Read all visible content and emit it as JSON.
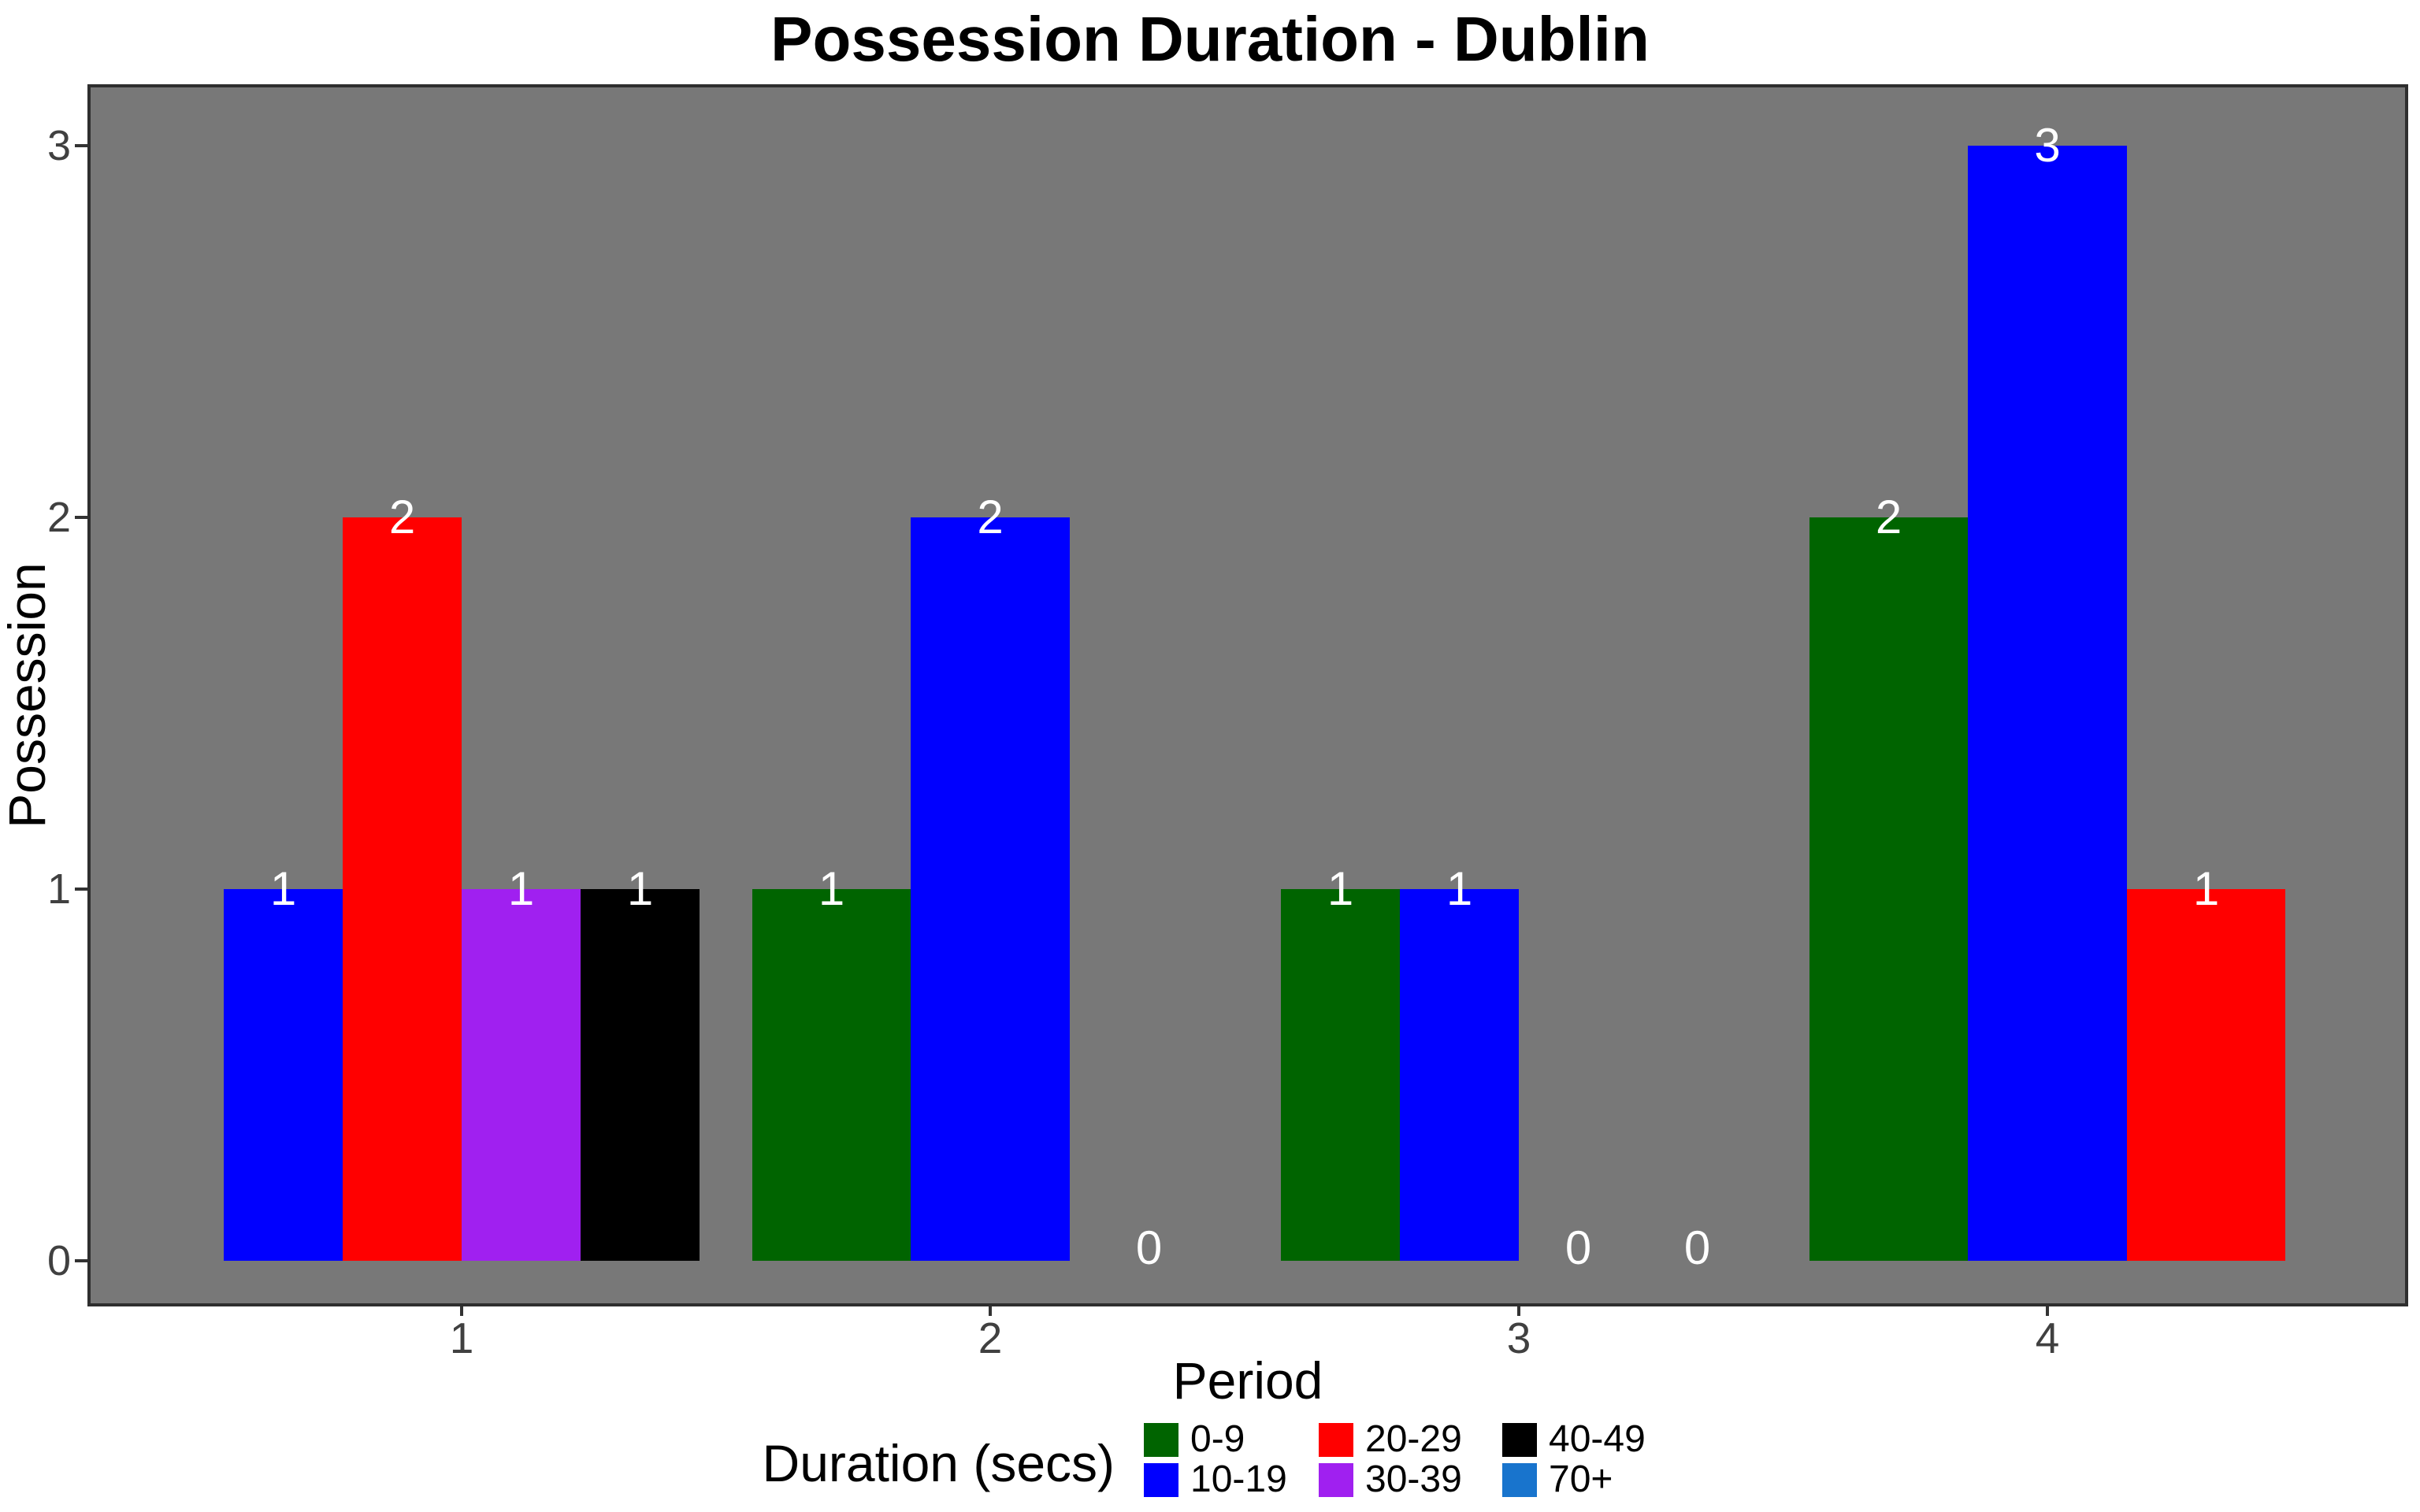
{
  "title": "Possession Duration - Dublin",
  "chart_data": {
    "type": "bar",
    "title": "Possession Duration - Dublin",
    "xlabel": "Period",
    "ylabel": "Possession",
    "x_ticks": [
      "1",
      "2",
      "3",
      "4"
    ],
    "y_ticks": [
      0,
      1,
      2,
      3
    ],
    "ylim": [
      0,
      3
    ],
    "grid": false,
    "panel_background": "#787878",
    "panel_border": "#2e2e2e",
    "bar_label_color": "#ffffff",
    "legend": {
      "position": "bottom",
      "title": "Duration (secs)",
      "items": [
        {
          "label": "0-9",
          "color": "#006400"
        },
        {
          "label": "10-19",
          "color": "#0000FF"
        },
        {
          "label": "20-29",
          "color": "#FF0000"
        },
        {
          "label": "30-39",
          "color": "#A020F0"
        },
        {
          "label": "40-49",
          "color": "#000000"
        },
        {
          "label": "70+",
          "color": "#1874CD"
        }
      ]
    },
    "groups": [
      {
        "period": "1",
        "n_slots": 4,
        "bars": [
          {
            "slot": 0,
            "category": "10-19",
            "value": 1
          },
          {
            "slot": 1,
            "category": "20-29",
            "value": 2
          },
          {
            "slot": 2,
            "category": "30-39",
            "value": 1
          },
          {
            "slot": 3,
            "category": "40-49",
            "value": 1
          }
        ],
        "zero_label_slots": []
      },
      {
        "period": "2",
        "n_slots": 3,
        "bars": [
          {
            "slot": 0,
            "category": "0-9",
            "value": 1
          },
          {
            "slot": 1,
            "category": "10-19",
            "value": 2
          }
        ],
        "zero_label_slots": [
          2
        ]
      },
      {
        "period": "3",
        "n_slots": 4,
        "bars": [
          {
            "slot": 0,
            "category": "0-9",
            "value": 1
          },
          {
            "slot": 1,
            "category": "10-19",
            "value": 1
          }
        ],
        "zero_label_slots": [
          2,
          3
        ]
      },
      {
        "period": "4",
        "n_slots": 3,
        "bars": [
          {
            "slot": 0,
            "category": "0-9",
            "value": 2
          },
          {
            "slot": 1,
            "category": "10-19",
            "value": 3
          },
          {
            "slot": 2,
            "category": "20-29",
            "value": 1
          }
        ],
        "zero_label_slots": []
      }
    ]
  }
}
